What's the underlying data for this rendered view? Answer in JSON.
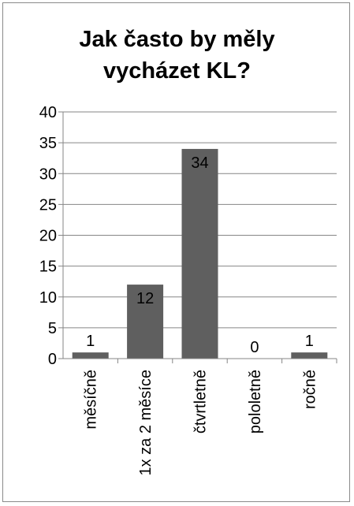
{
  "chart_data": {
    "type": "bar",
    "title_lines": [
      "Jak často by měly",
      "vycházet KL?"
    ],
    "categories": [
      "měsíčně",
      "1x za 2 měsíce",
      "čtvrtletně",
      "pololetně",
      "ročně"
    ],
    "values": [
      1,
      12,
      34,
      0,
      1
    ],
    "data_labels": [
      "1",
      "12",
      "34",
      "0",
      "1"
    ],
    "y_ticks": [
      "0",
      "5",
      "10",
      "15",
      "20",
      "25",
      "30",
      "35",
      "40"
    ],
    "ylim": [
      0,
      40
    ],
    "grid": true,
    "legend": "none",
    "bar_color": "#5f5f5f",
    "grid_color": "#868686"
  }
}
